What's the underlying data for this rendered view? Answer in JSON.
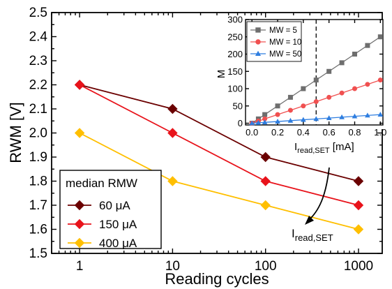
{
  "chart_data": [
    {
      "type": "line",
      "xscale": "log",
      "xlabel": "Reading cycles",
      "ylabel": "RWM [V]",
      "x": [
        1,
        10,
        100,
        1000
      ],
      "xticks": [
        "1",
        "10",
        "100",
        "1000"
      ],
      "yticks": [
        "1.5",
        "1.6",
        "1.7",
        "1.8",
        "1.9",
        "2.0",
        "2.1",
        "2.2",
        "2.3",
        "2.4",
        "2.5"
      ],
      "xlim": [
        0.5,
        1800
      ],
      "ylim": [
        1.5,
        2.5
      ],
      "legend": {
        "title": "median RMW",
        "placement": "bottom-left"
      },
      "series": [
        {
          "name": "60 μA",
          "color": "#6b0000",
          "marker": "diamond",
          "values": [
            2.2,
            2.1,
            1.9,
            1.8
          ]
        },
        {
          "name": "150 μA",
          "color": "#e8131b",
          "marker": "diamond",
          "values": [
            2.2,
            2.0,
            1.8,
            1.7
          ]
        },
        {
          "name": "400 μA",
          "color": "#ffbf00",
          "marker": "diamond",
          "values": [
            2.0,
            1.8,
            1.7,
            1.6
          ]
        }
      ],
      "annotations": [
        {
          "text": "I",
          "subscript": "read,SET"
        }
      ]
    },
    {
      "type": "line",
      "inset": true,
      "xlabel": "I",
      "xlabel_subscript": "read,SET",
      "xlabel_unit": " [mA]",
      "ylabel": "M",
      "xlim": [
        -0.05,
        1.02
      ],
      "ylim": [
        -5,
        300
      ],
      "xticks": [
        "0.0",
        "0.2",
        "0.4",
        "0.6",
        "0.8",
        "1.0"
      ],
      "yticks": [
        "0",
        "50",
        "100",
        "150",
        "200",
        "250",
        "300"
      ],
      "vertical_dashed_line_x": 0.5,
      "legend": {
        "placement": "top-left"
      },
      "series": [
        {
          "name": "MW = 5",
          "color": "#6e6e6e",
          "marker": "square",
          "x": [
            0,
            0.05,
            0.1,
            0.2,
            0.3,
            0.4,
            0.5,
            0.6,
            0.7,
            0.8,
            0.9,
            1.0
          ],
          "values": [
            0,
            12.5,
            25,
            50,
            75,
            100,
            125,
            150,
            175,
            200,
            225,
            250
          ]
        },
        {
          "name": "MW = 10",
          "color": "#f05050",
          "marker": "circle",
          "x": [
            0,
            0.05,
            0.1,
            0.2,
            0.3,
            0.4,
            0.5,
            0.6,
            0.7,
            0.8,
            0.9,
            1.0
          ],
          "values": [
            0,
            6.25,
            12.5,
            25,
            37.5,
            50,
            62.5,
            75,
            87.5,
            100,
            112.5,
            125
          ]
        },
        {
          "name": "MW = 50",
          "color": "#2f7ee0",
          "marker": "triangle",
          "x": [
            0,
            0.05,
            0.1,
            0.2,
            0.3,
            0.4,
            0.5,
            0.6,
            0.7,
            0.8,
            0.9,
            1.0
          ],
          "values": [
            0,
            1.25,
            2.5,
            5,
            7.5,
            10,
            12.5,
            15,
            17.5,
            20,
            22.5,
            25
          ]
        }
      ]
    }
  ]
}
